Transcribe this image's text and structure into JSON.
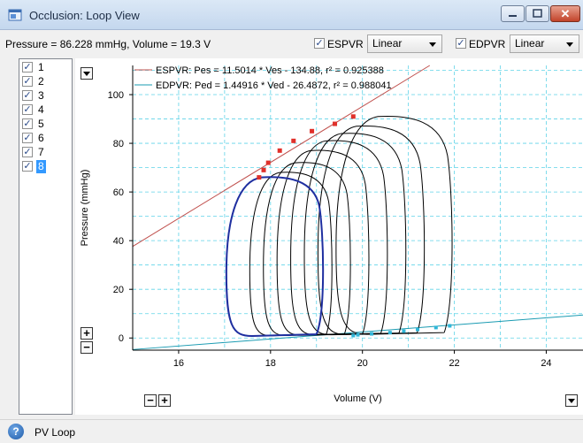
{
  "window": {
    "title": "Occlusion: Loop View"
  },
  "toolbar": {
    "readout": "Pressure = 86.228 mmHg, Volume = 19.3 V",
    "espvr": {
      "label": "ESPVR",
      "checked": true,
      "fit": "Linear"
    },
    "edpvr": {
      "label": "EDPVR",
      "checked": true,
      "fit": "Linear"
    }
  },
  "series_list": {
    "items": [
      {
        "label": "1",
        "checked": true
      },
      {
        "label": "2",
        "checked": true
      },
      {
        "label": "3",
        "checked": true
      },
      {
        "label": "4",
        "checked": true
      },
      {
        "label": "5",
        "checked": true
      },
      {
        "label": "6",
        "checked": true
      },
      {
        "label": "7",
        "checked": true
      },
      {
        "label": "8",
        "checked": true,
        "selected": true
      }
    ]
  },
  "status": {
    "text": "PV Loop"
  },
  "controls": {
    "plus": "+",
    "minus": "−"
  },
  "chart_data": {
    "type": "line",
    "title": "",
    "xlabel": "Volume (V)",
    "ylabel": "Pressure (mmHg)",
    "xlim": [
      15,
      24.8
    ],
    "ylim": [
      -5,
      112
    ],
    "xticks": [
      16,
      18,
      20,
      22,
      24
    ],
    "yticks": [
      0,
      20,
      40,
      60,
      80,
      100
    ],
    "grid": true,
    "legend_position": "top-left",
    "regression_lines": [
      {
        "name": "ESPVR",
        "label": "ESPVR: Pes = 11.5014 * Ves - 134.88, r² = 0.925388",
        "slope": 11.5014,
        "intercept": -134.88,
        "color": "#c0504d"
      },
      {
        "name": "EDPVR",
        "label": "EDPVR: Ped = 1.44916 * Ved - 26.4872, r² = 0.988041",
        "slope": 1.44916,
        "intercept": -26.4872,
        "color": "#1a9bb2"
      }
    ],
    "loops": [
      {
        "name": "1",
        "esv": 19.5,
        "edv": 21.9,
        "pmax": 91,
        "pmin": 1.5,
        "color": "#000000"
      },
      {
        "name": "2",
        "esv": 19.1,
        "edv": 21.3,
        "pmax": 87,
        "pmin": 1.4,
        "color": "#000000"
      },
      {
        "name": "3",
        "esv": 18.8,
        "edv": 20.9,
        "pmax": 84,
        "pmin": 1.3,
        "color": "#000000"
      },
      {
        "name": "4",
        "esv": 18.5,
        "edv": 20.5,
        "pmax": 81,
        "pmin": 1.2,
        "color": "#000000"
      },
      {
        "name": "5",
        "esv": 18.2,
        "edv": 20.1,
        "pmax": 77,
        "pmin": 1.1,
        "color": "#000000"
      },
      {
        "name": "6",
        "esv": 17.9,
        "edv": 19.7,
        "pmax": 72,
        "pmin": 1.0,
        "color": "#000000"
      },
      {
        "name": "7",
        "esv": 17.6,
        "edv": 19.3,
        "pmax": 68,
        "pmin": 0.9,
        "color": "#000000"
      },
      {
        "name": "8",
        "esv": 17.1,
        "edv": 19.1,
        "pmax": 66,
        "pmin": 0.8,
        "color": "#1f2fa0"
      }
    ],
    "es_points": [
      {
        "x": 19.8,
        "y": 91
      },
      {
        "x": 19.4,
        "y": 88
      },
      {
        "x": 18.9,
        "y": 85
      },
      {
        "x": 18.5,
        "y": 81
      },
      {
        "x": 18.2,
        "y": 77
      },
      {
        "x": 17.95,
        "y": 72
      },
      {
        "x": 17.85,
        "y": 69
      },
      {
        "x": 17.75,
        "y": 66
      }
    ],
    "ed_points": [
      {
        "x": 21.9,
        "y": 5
      },
      {
        "x": 21.6,
        "y": 4.3
      },
      {
        "x": 21.2,
        "y": 3.5
      },
      {
        "x": 20.9,
        "y": 2.8
      },
      {
        "x": 20.6,
        "y": 2.2
      },
      {
        "x": 20.2,
        "y": 1.7
      },
      {
        "x": 19.9,
        "y": 1.3
      },
      {
        "x": 19.8,
        "y": 1.0
      }
    ]
  }
}
